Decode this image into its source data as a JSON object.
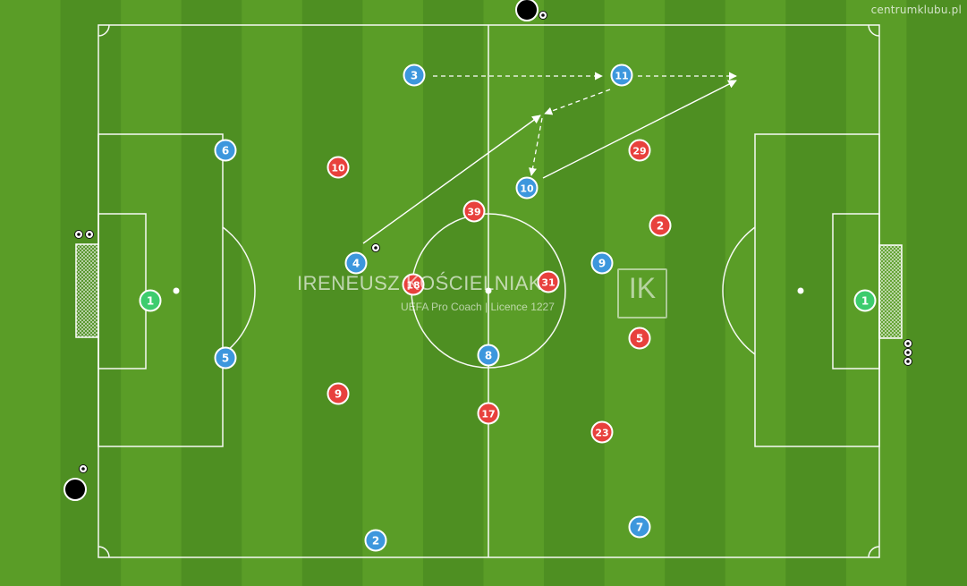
{
  "site_label": "centrumklubu.pl",
  "watermark": {
    "name": "IRENEUSZ KOŚCIELNIAK",
    "subtitle": "UEFA Pro Coach   |   Licence 1227",
    "logo": "IK"
  },
  "colors": {
    "blue_team": "#3d97dd",
    "red_team": "#e8413d",
    "goalkeeper": "#3dcc6e",
    "pitch_light": "#5a9d27",
    "pitch_dark": "#4e8f22"
  },
  "players": {
    "blue": [
      "3",
      "11",
      "6",
      "10",
      "4",
      "9",
      "5",
      "8",
      "2",
      "7"
    ],
    "red": [
      "10",
      "29",
      "39",
      "2",
      "18",
      "31",
      "5",
      "9",
      "17",
      "23"
    ],
    "goalkeepers": [
      "1",
      "1"
    ]
  },
  "icons": [
    "ball-icon",
    "cone-icon",
    "goal-net-icon",
    "pass-arrow-icon",
    "run-arrow-icon"
  ]
}
